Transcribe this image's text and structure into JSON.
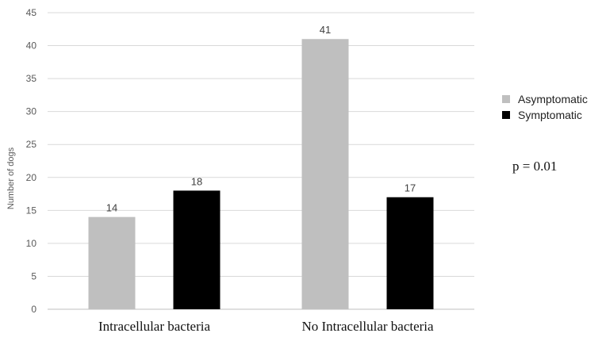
{
  "chart_data": {
    "type": "bar",
    "categories": [
      "Intracellular bacteria",
      "No Intracellular bacteria"
    ],
    "series": [
      {
        "name": "Asymptomatic",
        "values": [
          14,
          41
        ],
        "color": "#bfbfbf"
      },
      {
        "name": "Symptomatic",
        "values": [
          18,
          17
        ],
        "color": "#000000"
      }
    ],
    "ylabel": "Number of dogs",
    "xlabel": "",
    "ylim": [
      0,
      45
    ],
    "yticks": [
      0,
      5,
      10,
      15,
      20,
      25,
      30,
      35,
      40,
      45
    ],
    "grid": true,
    "legend": "right",
    "annotation": "p = 0.01"
  }
}
